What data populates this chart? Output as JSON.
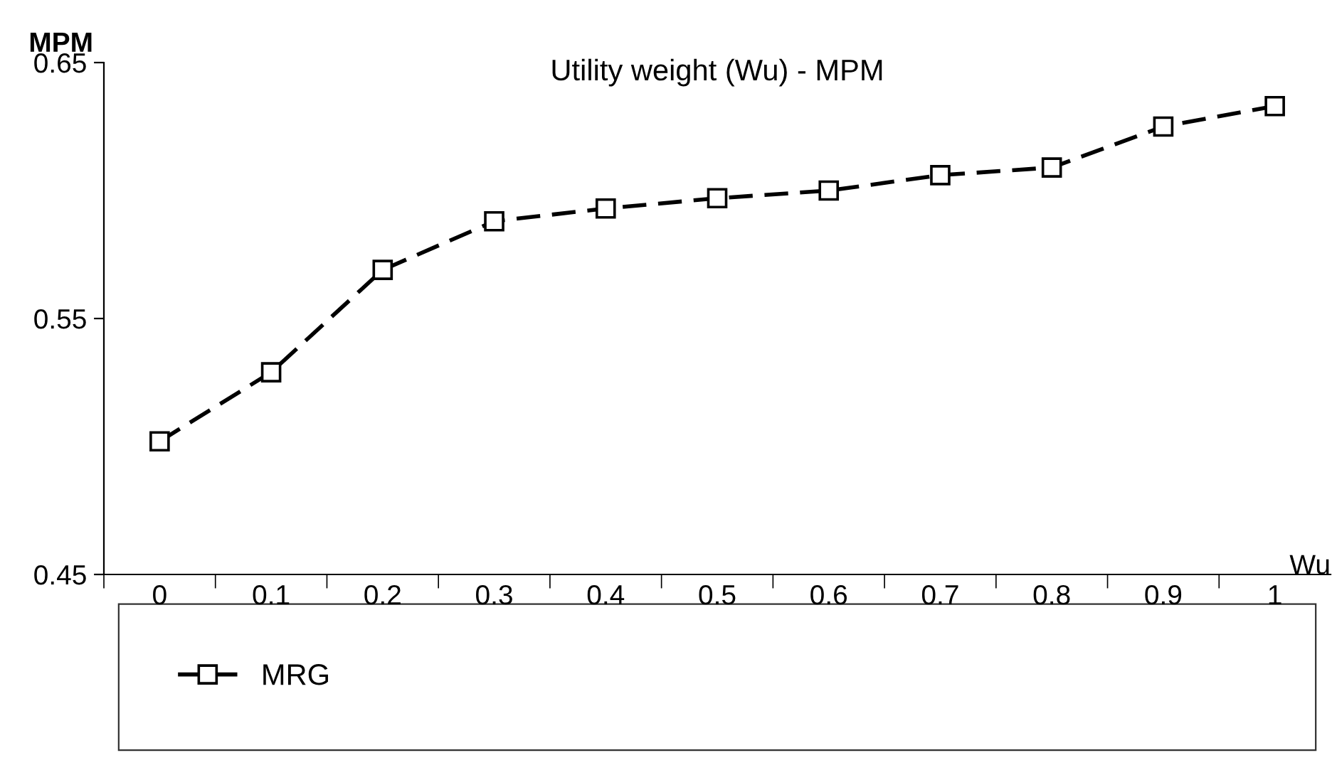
{
  "chart_data": {
    "type": "line",
    "title": "Utility weight (Wu) - MPM",
    "xlabel": "Wu",
    "ylabel": "MPM",
    "categories": [
      "0",
      "0.1",
      "0.2",
      "0.3",
      "0.4",
      "0.5",
      "0.6",
      "0.7",
      "0.8",
      "0.9",
      "1"
    ],
    "series": [
      {
        "name": "MRG",
        "color": "#000000",
        "values": [
          0.502,
          0.529,
          0.569,
          0.588,
          0.593,
          0.597,
          0.6,
          0.606,
          0.609,
          0.625,
          0.633
        ]
      }
    ],
    "ylim": [
      0.45,
      0.65
    ],
    "yticks": [
      0.45,
      0.55,
      0.65
    ],
    "grid": false,
    "legend": "bottom",
    "marker": "square",
    "line_style": "dashed"
  }
}
